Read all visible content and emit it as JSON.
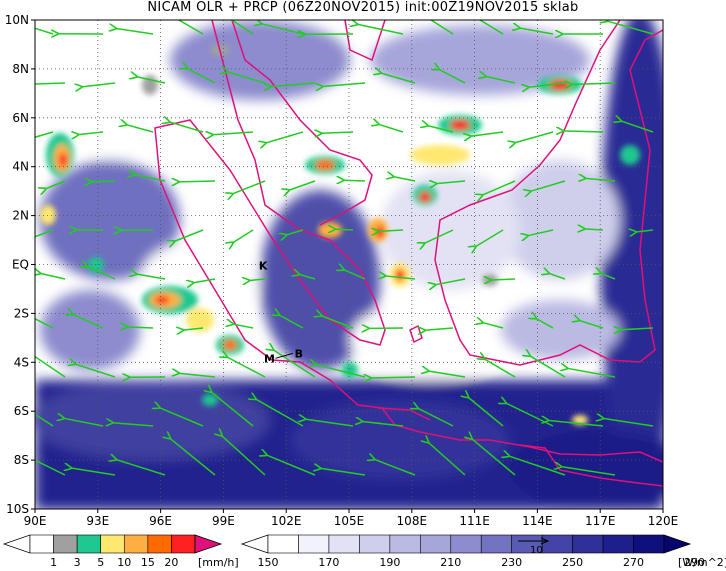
{
  "title": "NICAM OLR + PRCP (06Z20NOV2015) init:00Z19NOV2015 sklab",
  "map": {
    "lon_range": [
      90,
      120
    ],
    "lat_range": [
      -10,
      10
    ],
    "x_ticks": [
      "90E",
      "93E",
      "96E",
      "99E",
      "102E",
      "105E",
      "108E",
      "111E",
      "114E",
      "117E",
      "120E"
    ],
    "y_ticks": [
      "10N",
      "8N",
      "6N",
      "4N",
      "2N",
      "EQ",
      "2S",
      "4S",
      "6S",
      "8S",
      "10S"
    ],
    "markers": [
      {
        "label": "K",
        "lon": 100.9,
        "lat": -0.2
      },
      {
        "label": "M",
        "lon": 101.2,
        "lat": -4.0
      },
      {
        "label": "B",
        "lon": 102.6,
        "lat": -3.8
      }
    ],
    "colors": {
      "coast": "#e0107a",
      "vector": "#22cc22",
      "grid": "#555555"
    }
  },
  "precip_colorbar": {
    "labels": [
      "1",
      "3",
      "5",
      "10",
      "15",
      "20"
    ],
    "unit": "[mm/h]",
    "colors": [
      "#ffffff",
      "#a0a0a0",
      "#1ec890",
      "#ffe870",
      "#ffb040",
      "#ff6a00",
      "#ff2020",
      "#e0107a"
    ]
  },
  "olr_colorbar": {
    "labels": [
      "150",
      "170",
      "190",
      "210",
      "230",
      "250",
      "270",
      "290"
    ],
    "unit": "[W/m^2]",
    "ref_label": "10",
    "colors": [
      "#ffffff",
      "#f2f2fb",
      "#e2e2f4",
      "#cfcfec",
      "#babae3",
      "#a6a6da",
      "#8c8cce",
      "#7373c1",
      "#5a5ab3",
      "#4444a6",
      "#30309a",
      "#1e1e8c",
      "#10107d",
      "#06066c"
    ]
  }
}
